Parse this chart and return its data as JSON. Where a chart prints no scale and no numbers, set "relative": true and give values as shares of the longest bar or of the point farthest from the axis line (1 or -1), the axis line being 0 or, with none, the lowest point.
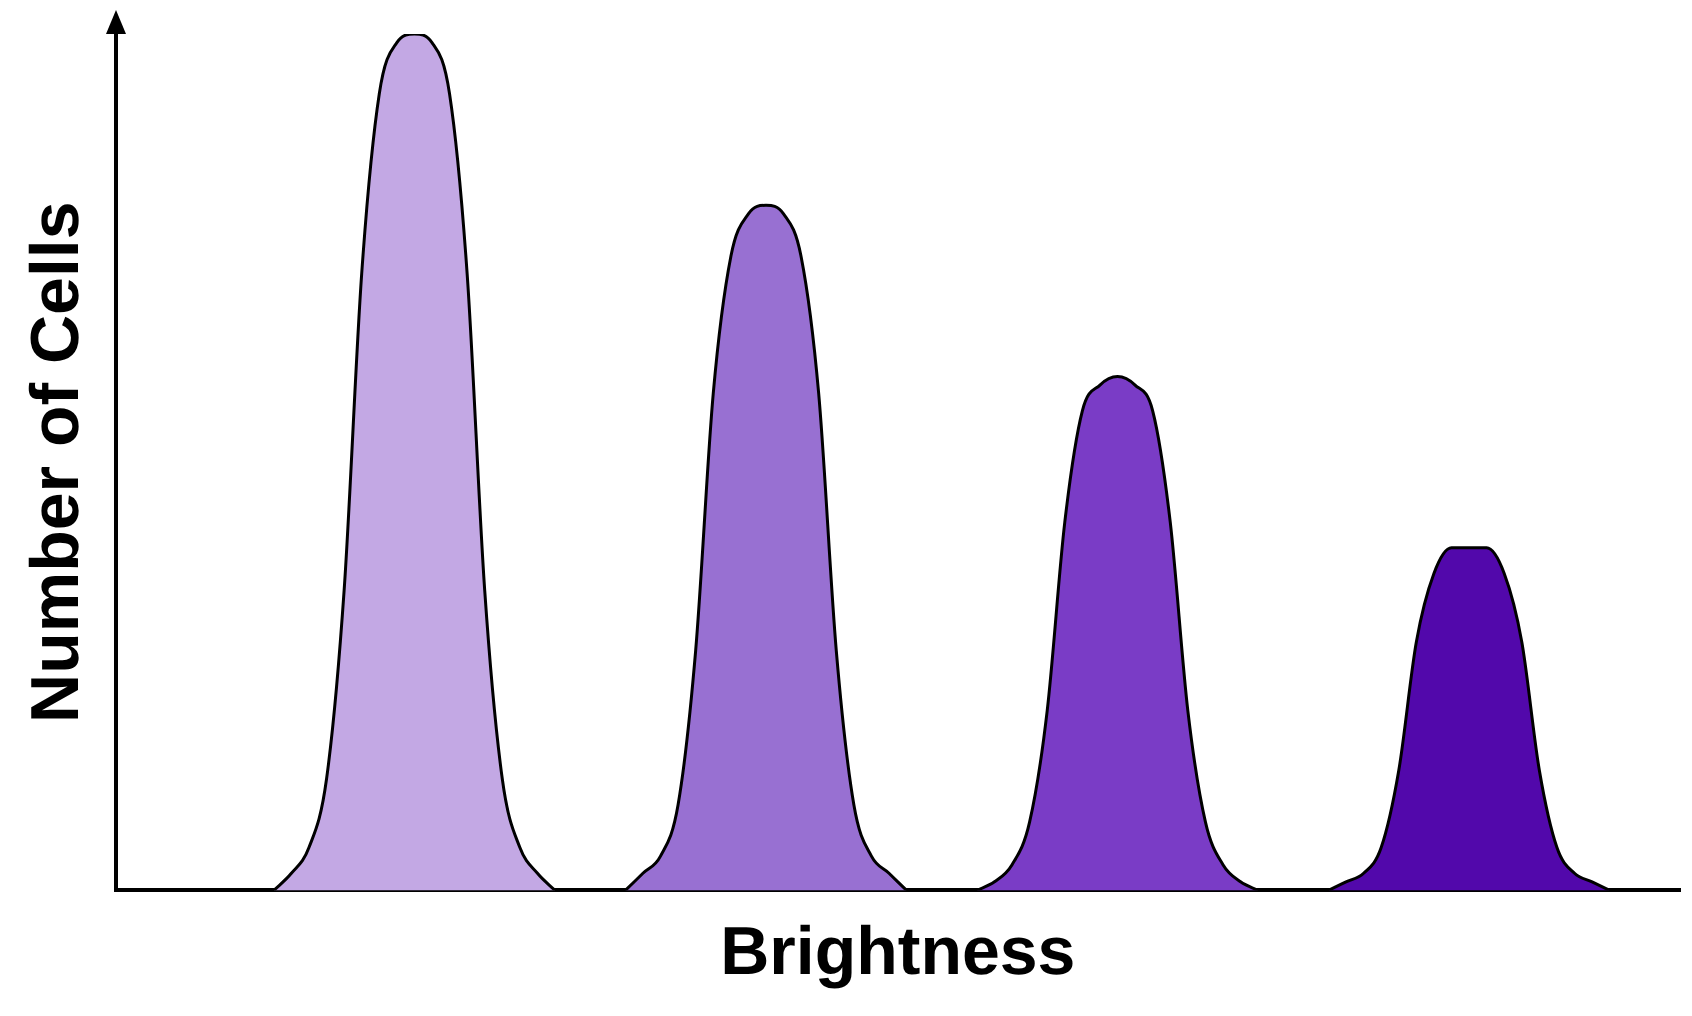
{
  "chart_data": {
    "type": "area",
    "relative": true,
    "xlabel": "Brightness",
    "ylabel": "Number of Cells",
    "grid": false,
    "legend": false,
    "tick_labels": false,
    "categories": [
      null,
      null,
      null,
      null,
      null,
      null,
      null,
      null,
      null,
      null,
      null,
      null,
      null,
      null,
      null,
      null,
      null,
      null,
      null,
      null,
      null,
      null,
      null,
      null,
      null,
      null,
      null,
      null,
      null,
      null,
      null,
      null,
      null,
      null,
      null,
      null,
      null,
      null,
      null,
      null,
      null,
      null,
      null,
      null,
      null,
      null,
      null,
      null,
      null,
      null,
      null,
      null,
      null,
      null,
      null,
      null,
      null,
      null,
      null,
      null,
      null,
      null,
      null,
      null,
      null,
      null,
      null,
      null,
      null,
      null,
      null,
      null,
      null,
      null,
      null,
      null,
      null,
      null,
      null,
      null,
      null,
      null,
      null,
      null,
      null,
      null,
      null,
      null,
      null,
      null
    ],
    "series": [
      {
        "color": "#c3a8e4",
        "values": [
          null,
          null,
          null,
          null,
          null,
          null,
          null,
          null,
          null,
          0,
          0.02,
          0.05,
          0.13,
          0.35,
          0.72,
          0.93,
          0.99,
          1,
          0.99,
          0.93,
          0.72,
          0.35,
          0.13,
          0.05,
          0.02,
          0,
          null,
          null,
          null,
          null,
          null,
          null,
          null,
          null,
          null,
          null,
          null,
          null,
          null,
          null,
          null,
          null,
          null,
          null,
          null,
          null,
          null,
          null,
          null,
          null,
          null,
          null,
          null,
          null,
          null,
          null,
          null,
          null,
          null,
          null,
          null,
          null,
          null,
          null,
          null,
          null,
          null,
          null,
          null,
          null,
          null,
          null,
          null,
          null,
          null,
          null,
          null,
          null,
          null,
          null,
          null,
          null,
          null,
          null,
          null,
          null,
          null,
          null,
          null,
          null
        ]
      },
      {
        "color": "#9870d2",
        "values": [
          null,
          null,
          null,
          null,
          null,
          null,
          null,
          null,
          null,
          null,
          null,
          null,
          null,
          null,
          null,
          null,
          null,
          null,
          null,
          null,
          null,
          null,
          null,
          null,
          null,
          null,
          null,
          null,
          null,
          0,
          0.02,
          0.04,
          0.1,
          0.28,
          0.58,
          0.74,
          0.79,
          0.8,
          0.79,
          0.74,
          0.58,
          0.28,
          0.1,
          0.04,
          0.02,
          0,
          null,
          null,
          null,
          null,
          null,
          null,
          null,
          null,
          null,
          null,
          null,
          null,
          null,
          null,
          null,
          null,
          null,
          null,
          null,
          null,
          null,
          null,
          null,
          null,
          null,
          null,
          null,
          null,
          null,
          null,
          null,
          null,
          null,
          null,
          null,
          null,
          null,
          null,
          null,
          null,
          null,
          null,
          null,
          null
        ]
      },
      {
        "color": "#7a3cc6",
        "values": [
          null,
          null,
          null,
          null,
          null,
          null,
          null,
          null,
          null,
          null,
          null,
          null,
          null,
          null,
          null,
          null,
          null,
          null,
          null,
          null,
          null,
          null,
          null,
          null,
          null,
          null,
          null,
          null,
          null,
          null,
          null,
          null,
          null,
          null,
          null,
          null,
          null,
          null,
          null,
          null,
          null,
          null,
          null,
          null,
          null,
          null,
          null,
          null,
          null,
          0,
          0.01,
          0.03,
          0.08,
          0.21,
          0.43,
          0.56,
          0.59,
          0.6,
          0.59,
          0.56,
          0.43,
          0.21,
          0.08,
          0.03,
          0.01,
          0,
          null,
          null,
          null,
          null,
          null,
          null,
          null,
          null,
          null,
          null,
          null,
          null,
          null,
          null,
          null,
          null,
          null,
          null,
          null,
          null,
          null,
          null,
          null,
          null
        ]
      },
      {
        "color": "#5208ab",
        "values": [
          null,
          null,
          null,
          null,
          null,
          null,
          null,
          null,
          null,
          null,
          null,
          null,
          null,
          null,
          null,
          null,
          null,
          null,
          null,
          null,
          null,
          null,
          null,
          null,
          null,
          null,
          null,
          null,
          null,
          null,
          null,
          null,
          null,
          null,
          null,
          null,
          null,
          null,
          null,
          null,
          null,
          null,
          null,
          null,
          null,
          null,
          null,
          null,
          null,
          null,
          null,
          null,
          null,
          null,
          null,
          null,
          null,
          null,
          null,
          null,
          null,
          null,
          null,
          null,
          null,
          null,
          null,
          null,
          null,
          0,
          0.01,
          0.02,
          0.05,
          0.14,
          0.29,
          0.37,
          0.4,
          0.4,
          0.4,
          0.37,
          0.29,
          0.14,
          0.05,
          0.02,
          0.01,
          0,
          null,
          null,
          null,
          null
        ]
      }
    ]
  }
}
